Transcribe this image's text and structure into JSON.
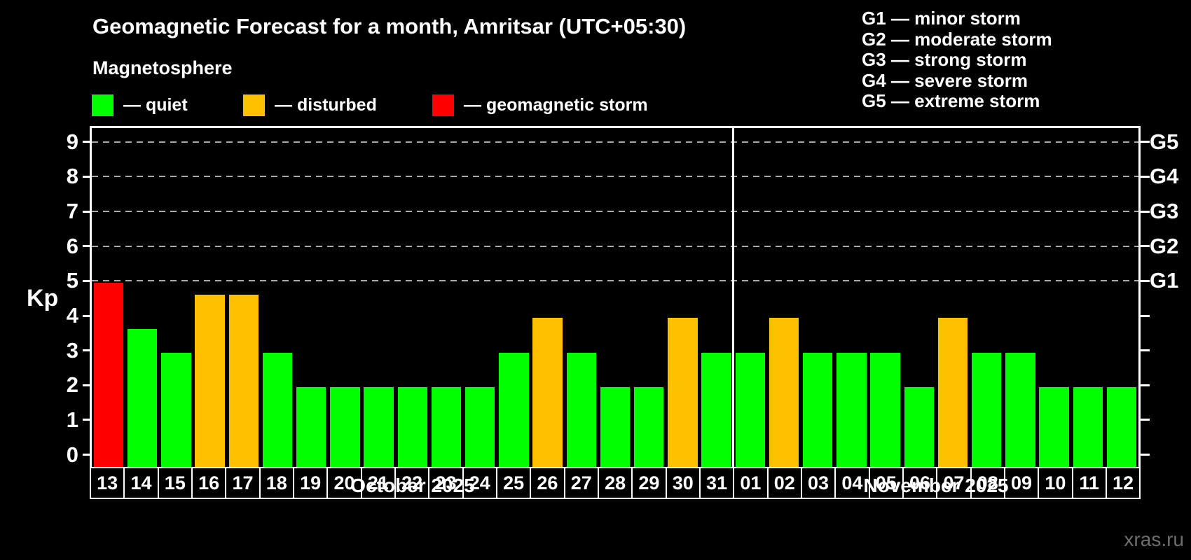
{
  "header": {
    "title": "Geomagnetic Forecast for a month, Amritsar (UTC+05:30)",
    "subtitle": "Magnetosphere"
  },
  "legend": {
    "items": [
      {
        "label": "— quiet",
        "status": "quiet"
      },
      {
        "label": "— disturbed",
        "status": "disturbed"
      },
      {
        "label": "— geomagnetic storm",
        "status": "storm"
      }
    ]
  },
  "g_legend": {
    "lines": [
      "G1 — minor storm",
      "G2 — moderate storm",
      "G3 — strong storm",
      "G4 — severe storm",
      "G5 — extreme storm"
    ]
  },
  "colors": {
    "quiet": "#00ff00",
    "disturbed": "#ffc000",
    "storm": "#ff0000",
    "grid": "#aaaaaa",
    "axis": "#ffffff",
    "watermark": "#6e6e6e"
  },
  "watermark": "xras.ru",
  "chart_data": {
    "type": "bar",
    "title": "Geomagnetic Forecast for a month, Amritsar (UTC+05:30)",
    "ylabel": "Kp",
    "ylim": [
      0,
      9
    ],
    "yticks": [
      0,
      1,
      2,
      3,
      4,
      5,
      6,
      7,
      8,
      9
    ],
    "gridline_levels": [
      5,
      6,
      7,
      8,
      9
    ],
    "grid": "dashed horizontal at G-storm levels only",
    "legend_position": "top",
    "right_axis": [
      {
        "label": "G1",
        "kp": 5
      },
      {
        "label": "G2",
        "kp": 6
      },
      {
        "label": "G3",
        "kp": 7
      },
      {
        "label": "G4",
        "kp": 8
      },
      {
        "label": "G5",
        "kp": 9
      }
    ],
    "months": [
      {
        "label": "October 2025",
        "num_days": 19
      },
      {
        "label": "November 2025",
        "num_days": 12
      }
    ],
    "bars": [
      {
        "day": "13",
        "value": 5,
        "status": "storm"
      },
      {
        "day": "14",
        "value": 3.67,
        "status": "quiet"
      },
      {
        "day": "15",
        "value": 3,
        "status": "quiet"
      },
      {
        "day": "16",
        "value": 4.67,
        "status": "disturbed"
      },
      {
        "day": "17",
        "value": 4.67,
        "status": "disturbed"
      },
      {
        "day": "18",
        "value": 3,
        "status": "quiet"
      },
      {
        "day": "19",
        "value": 2,
        "status": "quiet"
      },
      {
        "day": "20",
        "value": 2,
        "status": "quiet"
      },
      {
        "day": "21",
        "value": 2,
        "status": "quiet"
      },
      {
        "day": "22",
        "value": 2,
        "status": "quiet"
      },
      {
        "day": "23",
        "value": 2,
        "status": "quiet"
      },
      {
        "day": "24",
        "value": 2,
        "status": "quiet"
      },
      {
        "day": "25",
        "value": 3,
        "status": "quiet"
      },
      {
        "day": "26",
        "value": 4,
        "status": "disturbed"
      },
      {
        "day": "27",
        "value": 3,
        "status": "quiet"
      },
      {
        "day": "28",
        "value": 2,
        "status": "quiet"
      },
      {
        "day": "29",
        "value": 2,
        "status": "quiet"
      },
      {
        "day": "30",
        "value": 4,
        "status": "disturbed"
      },
      {
        "day": "31",
        "value": 3,
        "status": "quiet"
      },
      {
        "day": "01",
        "value": 3,
        "status": "quiet"
      },
      {
        "day": "02",
        "value": 4,
        "status": "disturbed"
      },
      {
        "day": "03",
        "value": 3,
        "status": "quiet"
      },
      {
        "day": "04",
        "value": 3,
        "status": "quiet"
      },
      {
        "day": "05",
        "value": 3,
        "status": "quiet"
      },
      {
        "day": "06",
        "value": 2,
        "status": "quiet"
      },
      {
        "day": "07",
        "value": 4,
        "status": "disturbed"
      },
      {
        "day": "08",
        "value": 3,
        "status": "quiet"
      },
      {
        "day": "09",
        "value": 3,
        "status": "quiet"
      },
      {
        "day": "10",
        "value": 2,
        "status": "quiet"
      },
      {
        "day": "11",
        "value": 2,
        "status": "quiet"
      },
      {
        "day": "12",
        "value": 2,
        "status": "quiet"
      }
    ]
  }
}
